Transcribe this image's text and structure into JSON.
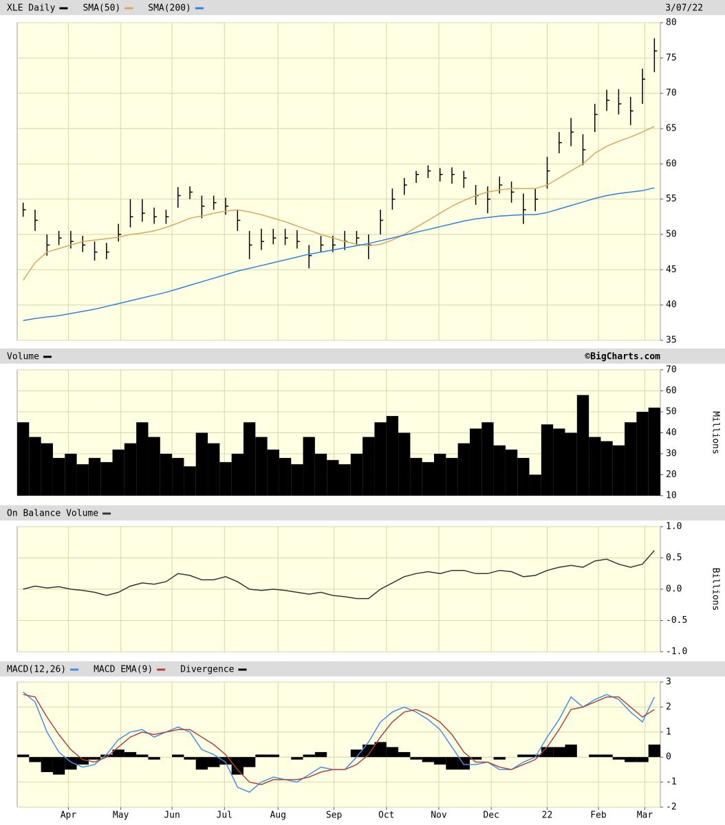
{
  "chart_data": [
    {
      "type": "ohlc",
      "date": "3/07/22",
      "ylim": [
        35,
        80
      ],
      "yticks": [
        35,
        40,
        45,
        50,
        55,
        60,
        65,
        70,
        75,
        80
      ],
      "grid": true,
      "series": [
        {
          "name": "XLE Daily",
          "style": "ohlc",
          "color": "#000000",
          "values": [
            53.5,
            52,
            48.5,
            49.5,
            49,
            48.5,
            47.5,
            47.5,
            50,
            52.5,
            53,
            52.5,
            52.5,
            55.5,
            56,
            54,
            54.5,
            54,
            52,
            48.5,
            49,
            49.5,
            49.5,
            49,
            47,
            48.5,
            48.5,
            49,
            49.5,
            48.5,
            52,
            55,
            57,
            58.5,
            59,
            58.5,
            58.5,
            58,
            55.5,
            55,
            57,
            56,
            53.5,
            55,
            59,
            63,
            64.5,
            62,
            67,
            69,
            68.5,
            67.5,
            72,
            76
          ],
          "high": [
            54.5,
            53.5,
            50,
            50.5,
            50.5,
            49.8,
            49,
            48.8,
            51.5,
            55,
            55,
            53.8,
            53.5,
            56.7,
            56.8,
            55.5,
            55.5,
            55.2,
            53.5,
            50.5,
            50.8,
            50.8,
            50.8,
            50.6,
            48.5,
            49.8,
            49.8,
            50.5,
            50.5,
            50,
            53.5,
            56.5,
            58,
            59,
            59.8,
            59.4,
            59.5,
            59,
            57,
            56.8,
            58.2,
            57.5,
            55.8,
            56.5,
            61,
            64.5,
            66.5,
            64.2,
            68.5,
            70.5,
            70.6,
            69.5,
            73.5,
            77.8
          ],
          "low": [
            52.5,
            50.5,
            47,
            48.5,
            48,
            47.5,
            46.3,
            46.5,
            49,
            51,
            51.8,
            51.5,
            51.5,
            53.8,
            55,
            52.3,
            53.5,
            52.8,
            50.5,
            46.5,
            47.8,
            48.6,
            48.5,
            48,
            45.2,
            47.5,
            47.5,
            47.8,
            48.5,
            46.5,
            50,
            53.5,
            55.6,
            57.3,
            58,
            57.5,
            57.2,
            56.6,
            54.2,
            53,
            55.8,
            54.5,
            51.5,
            53.3,
            56.5,
            61.5,
            62.5,
            59.8,
            64.5,
            67.5,
            67,
            65.5,
            68.5,
            73
          ]
        },
        {
          "name": "SMA(50)",
          "style": "line",
          "color": "#d9a85a",
          "values": [
            43.5,
            46,
            47.5,
            48,
            48.5,
            49,
            49.2,
            49.4,
            49.6,
            50,
            50.2,
            50.5,
            51,
            51.6,
            52.3,
            52.6,
            53,
            53.3,
            53.5,
            53.2,
            52.8,
            52.3,
            51.8,
            51.2,
            50.6,
            50,
            49.5,
            49,
            48.6,
            48.4,
            48.6,
            49.2,
            50,
            51,
            52,
            53,
            54,
            54.8,
            55.5,
            56,
            56.3,
            56.5,
            56.5,
            56.5,
            57,
            58,
            59,
            60,
            61.5,
            62.5,
            63.2,
            63.8,
            64.5,
            65.3
          ]
        },
        {
          "name": "SMA(200)",
          "style": "line",
          "color": "#2f7fe0",
          "values": [
            37.8,
            38.1,
            38.3,
            38.5,
            38.8,
            39.1,
            39.4,
            39.8,
            40.2,
            40.6,
            41,
            41.4,
            41.8,
            42.3,
            42.8,
            43.3,
            43.8,
            44.3,
            44.8,
            45.2,
            45.6,
            46,
            46.4,
            46.8,
            47.2,
            47.5,
            47.8,
            48.1,
            48.4,
            48.7,
            49.1,
            49.5,
            49.9,
            50.3,
            50.7,
            51.1,
            51.5,
            51.9,
            52.2,
            52.4,
            52.6,
            52.7,
            52.8,
            52.8,
            53.1,
            53.6,
            54.1,
            54.6,
            55.1,
            55.5,
            55.8,
            56,
            56.2,
            56.6
          ]
        }
      ]
    },
    {
      "type": "bar",
      "credit": "©BigCharts.com",
      "ylabel": "Millions",
      "ylim": [
        10,
        70
      ],
      "yticks": [
        10,
        20,
        30,
        40,
        50,
        60,
        70
      ],
      "grid": true,
      "series": [
        {
          "name": "Volume",
          "style": "bar",
          "color": "#000000",
          "values": [
            45,
            38,
            35,
            28,
            30,
            25,
            28,
            26,
            32,
            35,
            45,
            38,
            30,
            28,
            24,
            40,
            35,
            26,
            30,
            45,
            38,
            32,
            28,
            25,
            38,
            30,
            27,
            25,
            30,
            38,
            45,
            48,
            40,
            28,
            26,
            30,
            28,
            35,
            42,
            45,
            34,
            32,
            28,
            20,
            44,
            42,
            40,
            58,
            38,
            36,
            34,
            45,
            50,
            52
          ]
        }
      ]
    },
    {
      "type": "line",
      "ylabel": "Billions",
      "ylim": [
        -1,
        1
      ],
      "yticks": [
        {
          "value": -1,
          "label": "-1.0"
        },
        -0.5,
        {
          "value": 0,
          "label": "0.0"
        },
        0.5,
        {
          "value": 1,
          "label": "1.0"
        }
      ],
      "grid": true,
      "series": [
        {
          "name": "On Balance Volume",
          "style": "line",
          "color": "#333333",
          "values": [
            0.0,
            0.05,
            0.02,
            0.04,
            0.0,
            -0.02,
            -0.05,
            -0.1,
            -0.05,
            0.05,
            0.1,
            0.08,
            0.12,
            0.25,
            0.22,
            0.15,
            0.15,
            0.2,
            0.12,
            0.0,
            -0.02,
            0.0,
            -0.02,
            -0.05,
            -0.08,
            -0.05,
            -0.1,
            -0.12,
            -0.15,
            -0.15,
            0.0,
            0.1,
            0.2,
            0.25,
            0.28,
            0.25,
            0.3,
            0.3,
            0.25,
            0.25,
            0.3,
            0.28,
            0.2,
            0.22,
            0.3,
            0.35,
            0.38,
            0.35,
            0.45,
            0.48,
            0.4,
            0.35,
            0.4,
            0.62
          ]
        }
      ]
    },
    {
      "type": "line",
      "ylim": [
        -2,
        3
      ],
      "yticks": [
        -2,
        -1,
        0,
        1,
        2,
        3
      ],
      "grid": true,
      "xlim": [
        -0.5,
        53.5
      ],
      "xticks": [
        {
          "value": 3.8,
          "label": "Apr"
        },
        {
          "value": 8.2,
          "label": "May"
        },
        {
          "value": 12.5,
          "label": "Jun"
        },
        {
          "value": 16.9,
          "label": "Jul"
        },
        {
          "value": 21.4,
          "label": "Aug"
        },
        {
          "value": 26.1,
          "label": "Sep"
        },
        {
          "value": 30.5,
          "label": "Oct"
        },
        {
          "value": 34.9,
          "label": "Nov"
        },
        {
          "value": 39.3,
          "label": "Dec"
        },
        {
          "value": 44,
          "label": "22"
        },
        {
          "value": 48.3,
          "label": "Feb"
        },
        {
          "value": 52.2,
          "label": "Mar"
        }
      ],
      "series": [
        {
          "name": "MACD(12,26)",
          "style": "line",
          "color": "#3f8fe8",
          "values": [
            2.6,
            2.2,
            1.0,
            0.2,
            -0.2,
            -0.4,
            -0.3,
            0.1,
            0.7,
            1.0,
            1.1,
            0.8,
            1.0,
            1.2,
            1.0,
            0.3,
            0.1,
            -0.2,
            -1.2,
            -1.4,
            -1.0,
            -0.8,
            -0.9,
            -1.0,
            -0.7,
            -0.4,
            -0.5,
            -0.5,
            0.0,
            0.6,
            1.4,
            1.8,
            2.0,
            1.8,
            1.5,
            1.1,
            0.4,
            -0.3,
            -0.3,
            -0.2,
            -0.5,
            -0.5,
            -0.2,
            0.0,
            0.8,
            1.5,
            2.4,
            2.0,
            2.3,
            2.5,
            2.3,
            1.8,
            1.4,
            2.4
          ]
        },
        {
          "name": "MACD EMA(9)",
          "style": "line",
          "color": "#b04040",
          "values": [
            2.5,
            2.4,
            1.6,
            0.9,
            0.3,
            -0.1,
            -0.2,
            0.0,
            0.4,
            0.8,
            1.0,
            0.9,
            1.0,
            1.1,
            1.1,
            0.8,
            0.5,
            0.1,
            -0.5,
            -1.0,
            -1.1,
            -0.9,
            -0.9,
            -0.9,
            -0.8,
            -0.6,
            -0.5,
            -0.5,
            -0.3,
            0.1,
            0.8,
            1.4,
            1.8,
            1.9,
            1.7,
            1.4,
            0.9,
            0.2,
            -0.2,
            -0.2,
            -0.4,
            -0.5,
            -0.3,
            -0.1,
            0.4,
            1.1,
            1.9,
            2.0,
            2.2,
            2.4,
            2.4,
            2.0,
            1.6,
            1.9
          ]
        },
        {
          "name": "Divergence",
          "style": "bar",
          "color": "#000000",
          "values": [
            0.1,
            -0.2,
            -0.6,
            -0.7,
            -0.5,
            -0.3,
            -0.1,
            0.1,
            0.3,
            0.2,
            0.1,
            -0.1,
            0.0,
            0.1,
            -0.1,
            -0.5,
            -0.4,
            -0.3,
            -0.7,
            -0.4,
            0.1,
            0.1,
            0.0,
            -0.1,
            0.1,
            0.2,
            0.0,
            0.0,
            0.3,
            0.5,
            0.6,
            0.4,
            0.2,
            -0.1,
            -0.2,
            -0.3,
            -0.5,
            -0.5,
            -0.1,
            0.0,
            -0.1,
            0.0,
            0.1,
            0.1,
            0.4,
            0.4,
            0.5,
            0.0,
            0.1,
            0.1,
            -0.1,
            -0.2,
            -0.2,
            0.5
          ]
        }
      ]
    }
  ]
}
